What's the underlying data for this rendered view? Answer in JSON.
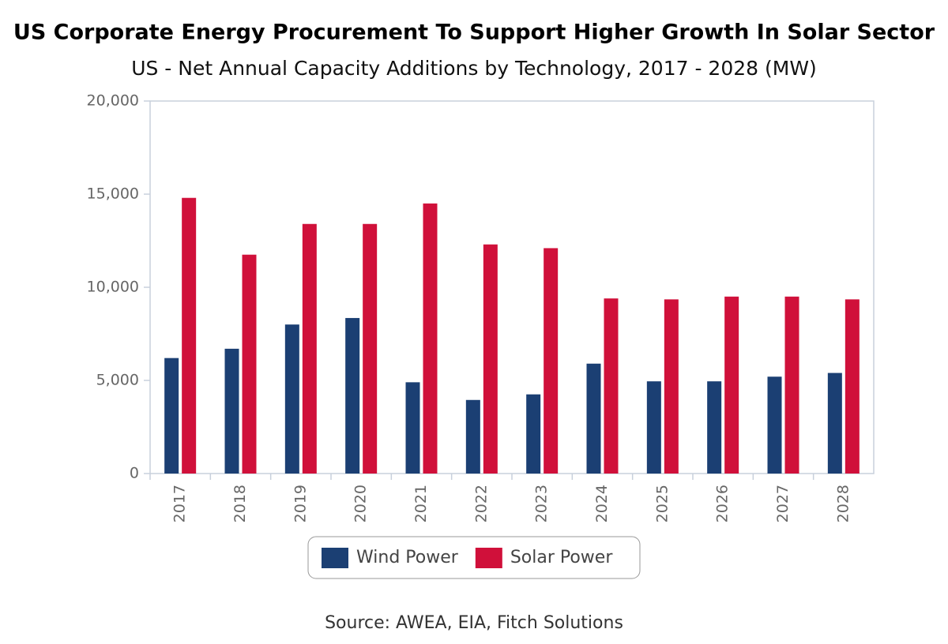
{
  "chart_data": {
    "type": "bar",
    "title": "US Corporate Energy Procurement To Support Higher Growth In Solar Sector",
    "subtitle": "US - Net Annual Capacity Additions by Technology, 2017 - 2028 (MW)",
    "source": "Source: AWEA, EIA, Fitch Solutions",
    "categories": [
      "2017",
      "2018",
      "2019",
      "2020",
      "2021",
      "2022",
      "2023",
      "2024",
      "2025",
      "2026",
      "2027",
      "2028"
    ],
    "series": [
      {
        "name": "Wind Power",
        "color": "#1b3f73",
        "values": [
          6200,
          6700,
          8000,
          8350,
          4900,
          3950,
          4250,
          5900,
          4950,
          4950,
          5200,
          5400
        ]
      },
      {
        "name": "Solar Power",
        "color": "#d0103a",
        "values": [
          14800,
          11750,
          13400,
          13400,
          14500,
          12300,
          12100,
          9400,
          9350,
          9500,
          9500,
          9350
        ]
      }
    ],
    "ylim": [
      0,
      20000
    ],
    "yticks": [
      0,
      {
        "value": 5000,
        "label": "5,000"
      },
      {
        "value": 10000,
        "label": "10,000"
      },
      {
        "value": 15000,
        "label": "15,000"
      },
      {
        "value": 20000,
        "label": "20,000"
      }
    ],
    "grid": false,
    "legend": "bottom"
  }
}
